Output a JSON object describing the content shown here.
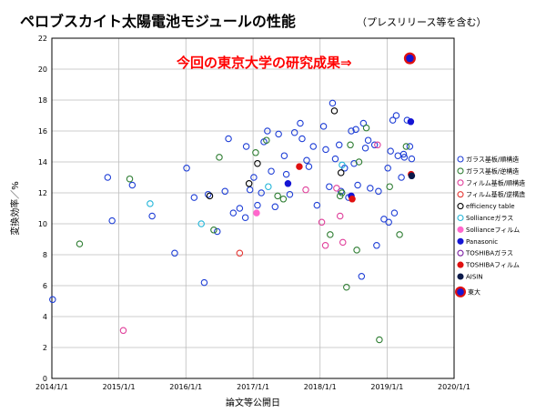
{
  "chart_data": {
    "type": "scatter",
    "title": "ペロブスカイト太陽電池モジュールの性能",
    "subtitle": "（プレスリリース等を含む）",
    "xlabel": "論文等公開日",
    "ylabel": "変換効率／%",
    "xlim": [
      "2014-01-01",
      "2020-01-01"
    ],
    "ylim": [
      0,
      22
    ],
    "x_ticks": [
      "2014/1/1",
      "2015/1/1",
      "2016/1/1",
      "2017/1/1",
      "2018/1/1",
      "2019/1/1",
      "2020/1/1"
    ],
    "y_ticks": [
      0,
      2,
      4,
      6,
      8,
      10,
      12,
      14,
      16,
      18,
      20,
      22
    ],
    "grid": true,
    "legend_position": "right",
    "annotation": "今回の東京大学の研究成果⇒",
    "series": [
      {
        "name": "ガラス基板/順構造",
        "color": "#1f3fd6",
        "fill": "none",
        "points": [
          [
            "2014-01-05",
            5.1
          ],
          [
            "2014-11-01",
            13.0
          ],
          [
            "2014-11-25",
            10.2
          ],
          [
            "2015-03-15",
            12.5
          ],
          [
            "2015-07-01",
            10.5
          ],
          [
            "2015-11-01",
            8.1
          ],
          [
            "2016-01-05",
            13.6
          ],
          [
            "2016-02-15",
            11.7
          ],
          [
            "2016-04-10",
            6.2
          ],
          [
            "2016-05-01",
            11.9
          ],
          [
            "2016-06-20",
            9.5
          ],
          [
            "2016-08-01",
            12.1
          ],
          [
            "2016-08-20",
            15.5
          ],
          [
            "2016-09-15",
            10.7
          ],
          [
            "2016-10-20",
            11.0
          ],
          [
            "2016-11-20",
            10.4
          ],
          [
            "2016-11-25",
            15.0
          ],
          [
            "2016-12-15",
            12.2
          ],
          [
            "2017-01-05",
            13.0
          ],
          [
            "2017-01-25",
            11.2
          ],
          [
            "2017-02-15",
            12.0
          ],
          [
            "2017-03-01",
            15.3
          ],
          [
            "2017-03-20",
            16.0
          ],
          [
            "2017-04-10",
            13.4
          ],
          [
            "2017-05-01",
            11.1
          ],
          [
            "2017-05-20",
            15.8
          ],
          [
            "2017-06-20",
            14.4
          ],
          [
            "2017-07-01",
            13.2
          ],
          [
            "2017-07-20",
            11.9
          ],
          [
            "2017-08-15",
            15.9
          ],
          [
            "2017-09-15",
            16.5
          ],
          [
            "2017-09-25",
            15.5
          ],
          [
            "2017-10-20",
            14.1
          ],
          [
            "2017-11-01",
            13.7
          ],
          [
            "2017-11-25",
            15.0
          ],
          [
            "2017-12-15",
            11.2
          ],
          [
            "2018-01-20",
            16.3
          ],
          [
            "2018-02-01",
            14.8
          ],
          [
            "2018-02-20",
            12.4
          ],
          [
            "2018-03-10",
            17.8
          ],
          [
            "2018-03-25",
            14.2
          ],
          [
            "2018-04-15",
            15.1
          ],
          [
            "2018-04-25",
            12.1
          ],
          [
            "2018-05-15",
            13.6
          ],
          [
            "2018-06-05",
            11.7
          ],
          [
            "2018-06-20",
            16.0
          ],
          [
            "2018-07-05",
            13.9
          ],
          [
            "2018-07-15",
            16.1
          ],
          [
            "2018-07-25",
            12.5
          ],
          [
            "2018-08-15",
            6.6
          ],
          [
            "2018-08-25",
            16.5
          ],
          [
            "2018-09-05",
            14.9
          ],
          [
            "2018-09-20",
            15.4
          ],
          [
            "2018-10-01",
            12.3
          ],
          [
            "2018-10-25",
            15.1
          ],
          [
            "2018-11-05",
            8.6
          ],
          [
            "2018-11-15",
            12.1
          ],
          [
            "2018-12-15",
            10.3
          ],
          [
            "2019-01-05",
            13.6
          ],
          [
            "2019-01-10",
            10.1
          ],
          [
            "2019-01-20",
            14.7
          ],
          [
            "2019-02-01",
            16.7
          ],
          [
            "2019-02-10",
            10.7
          ],
          [
            "2019-02-20",
            17.0
          ],
          [
            "2019-03-01",
            14.4
          ],
          [
            "2019-03-20",
            13.0
          ],
          [
            "2019-04-01",
            14.5
          ],
          [
            "2019-04-05",
            14.3
          ],
          [
            "2019-04-20",
            16.7
          ],
          [
            "2019-05-05",
            15.0
          ],
          [
            "2019-05-15",
            14.2
          ]
        ]
      },
      {
        "name": "ガラス基板/逆構造",
        "color": "#2e7d32",
        "fill": "none",
        "points": [
          [
            "2014-06-01",
            8.7
          ],
          [
            "2015-03-01",
            12.9
          ],
          [
            "2016-06-01",
            9.6
          ],
          [
            "2016-07-01",
            14.3
          ],
          [
            "2017-01-15",
            14.6
          ],
          [
            "2017-03-15",
            15.4
          ],
          [
            "2017-05-15",
            11.8
          ],
          [
            "2017-06-15",
            11.6
          ],
          [
            "2018-02-25",
            9.3
          ],
          [
            "2018-04-20",
            11.8
          ],
          [
            "2018-04-30",
            12.0
          ],
          [
            "2018-05-25",
            5.9
          ],
          [
            "2018-06-15",
            15.1
          ],
          [
            "2018-07-20",
            8.3
          ],
          [
            "2018-08-01",
            14.0
          ],
          [
            "2018-09-10",
            16.2
          ],
          [
            "2018-11-20",
            2.5
          ],
          [
            "2019-01-15",
            12.4
          ],
          [
            "2019-03-10",
            9.3
          ],
          [
            "2019-04-15",
            15.0
          ]
        ]
      },
      {
        "name": "フィルム基板/順構造",
        "color": "#e0409b",
        "fill": "none",
        "points": [
          [
            "2015-01-25",
            3.1
          ],
          [
            "2017-10-15",
            12.2
          ],
          [
            "2018-01-10",
            10.1
          ],
          [
            "2018-01-30",
            8.6
          ],
          [
            "2018-04-01",
            12.3
          ],
          [
            "2018-04-20",
            10.5
          ],
          [
            "2018-05-05",
            8.8
          ],
          [
            "2018-11-10",
            15.1
          ]
        ]
      },
      {
        "name": "フィルム基板/逆構造",
        "color": "#e53935",
        "fill": "none",
        "points": [
          [
            "2016-10-20",
            8.1
          ]
        ]
      },
      {
        "name": "efficiency table",
        "color": "#000000",
        "fill": "none",
        "points": [
          [
            "2016-05-10",
            11.8
          ],
          [
            "2016-12-10",
            12.6
          ],
          [
            "2017-01-25",
            13.9
          ],
          [
            "2018-03-20",
            17.3
          ],
          [
            "2018-04-25",
            13.3
          ]
        ]
      },
      {
        "name": "Sollianceガラス",
        "color": "#22b5d8",
        "fill": "none",
        "points": [
          [
            "2015-06-20",
            11.3
          ],
          [
            "2016-03-25",
            10.0
          ],
          [
            "2017-03-25",
            12.4
          ],
          [
            "2018-05-01",
            13.8
          ]
        ]
      },
      {
        "name": "Sollianceフィルム",
        "color": "#ff66cc",
        "fill": "#ff66cc",
        "points": [
          [
            "2017-01-20",
            10.7
          ]
        ]
      },
      {
        "name": "Panasonic",
        "color": "#1515d4",
        "fill": "#1515d4",
        "points": [
          [
            "2017-07-10",
            12.6
          ],
          [
            "2018-06-20",
            11.8
          ],
          [
            "2019-05-10",
            16.6
          ]
        ]
      },
      {
        "name": "TOSHIBAガラス",
        "color": "#7b1fa2",
        "fill": "none",
        "points": []
      },
      {
        "name": "TOSHIBAフィルム",
        "color": "#e01010",
        "fill": "#e01010",
        "points": [
          [
            "2017-09-10",
            13.7
          ],
          [
            "2018-06-25",
            11.6
          ],
          [
            "2019-05-12",
            13.2
          ]
        ]
      },
      {
        "name": "AISIN",
        "color": "#0a1a4a",
        "fill": "#0a1a4a",
        "points": [
          [
            "2019-05-15",
            13.1
          ]
        ]
      },
      {
        "name": "東大",
        "color": "#e01010",
        "fill": "#1515d4",
        "points": [
          [
            "2019-05-05",
            20.7
          ]
        ]
      }
    ]
  }
}
